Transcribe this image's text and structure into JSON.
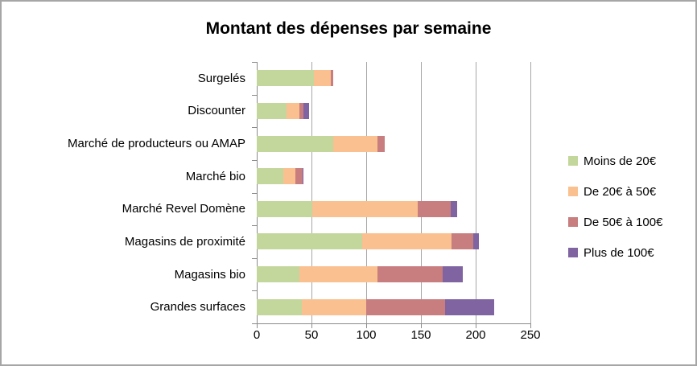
{
  "window": {
    "border_color": "#A6A6A6",
    "background_color": "#FFFFFF",
    "text_color": "#000000"
  },
  "chart_data": {
    "type": "bar",
    "orientation": "horizontal",
    "stacked": true,
    "title": "Montant des dépenses par semaine",
    "categories": [
      "Surgelés",
      "Discounter",
      "Marché de producteurs ou AMAP",
      "Marché bio",
      "Marché Revel Domène",
      "Magasins de proximité",
      "Magasins bio",
      "Grandes surfaces"
    ],
    "series": [
      {
        "name": "Moins de 20€",
        "color": "#C3D69B",
        "values": [
          52,
          27,
          70,
          24,
          51,
          96,
          39,
          41
        ]
      },
      {
        "name": "De 20€ à 50€",
        "color": "#FAC090",
        "values": [
          16,
          12,
          40,
          11,
          96,
          82,
          71,
          59
        ]
      },
      {
        "name": "De 50€ à 100€",
        "color": "#C87D7F",
        "values": [
          2,
          4,
          7,
          7,
          30,
          20,
          60,
          72
        ]
      },
      {
        "name": "Plus de 100€",
        "color": "#8064A2",
        "values": [
          0,
          5,
          0,
          1,
          6,
          5,
          18,
          45
        ]
      }
    ],
    "totals": [
      70,
      48,
      117,
      43,
      183,
      203,
      188,
      217
    ],
    "xlabel": "",
    "ylabel": "",
    "xlim": [
      0,
      250
    ],
    "xticks": [
      0,
      50,
      100,
      150,
      200,
      250
    ],
    "grid": "vertical-gridlines-on",
    "legend_position": "right",
    "gridline_color": "#A6A6A6",
    "axis_color": "#8C8C8C"
  }
}
